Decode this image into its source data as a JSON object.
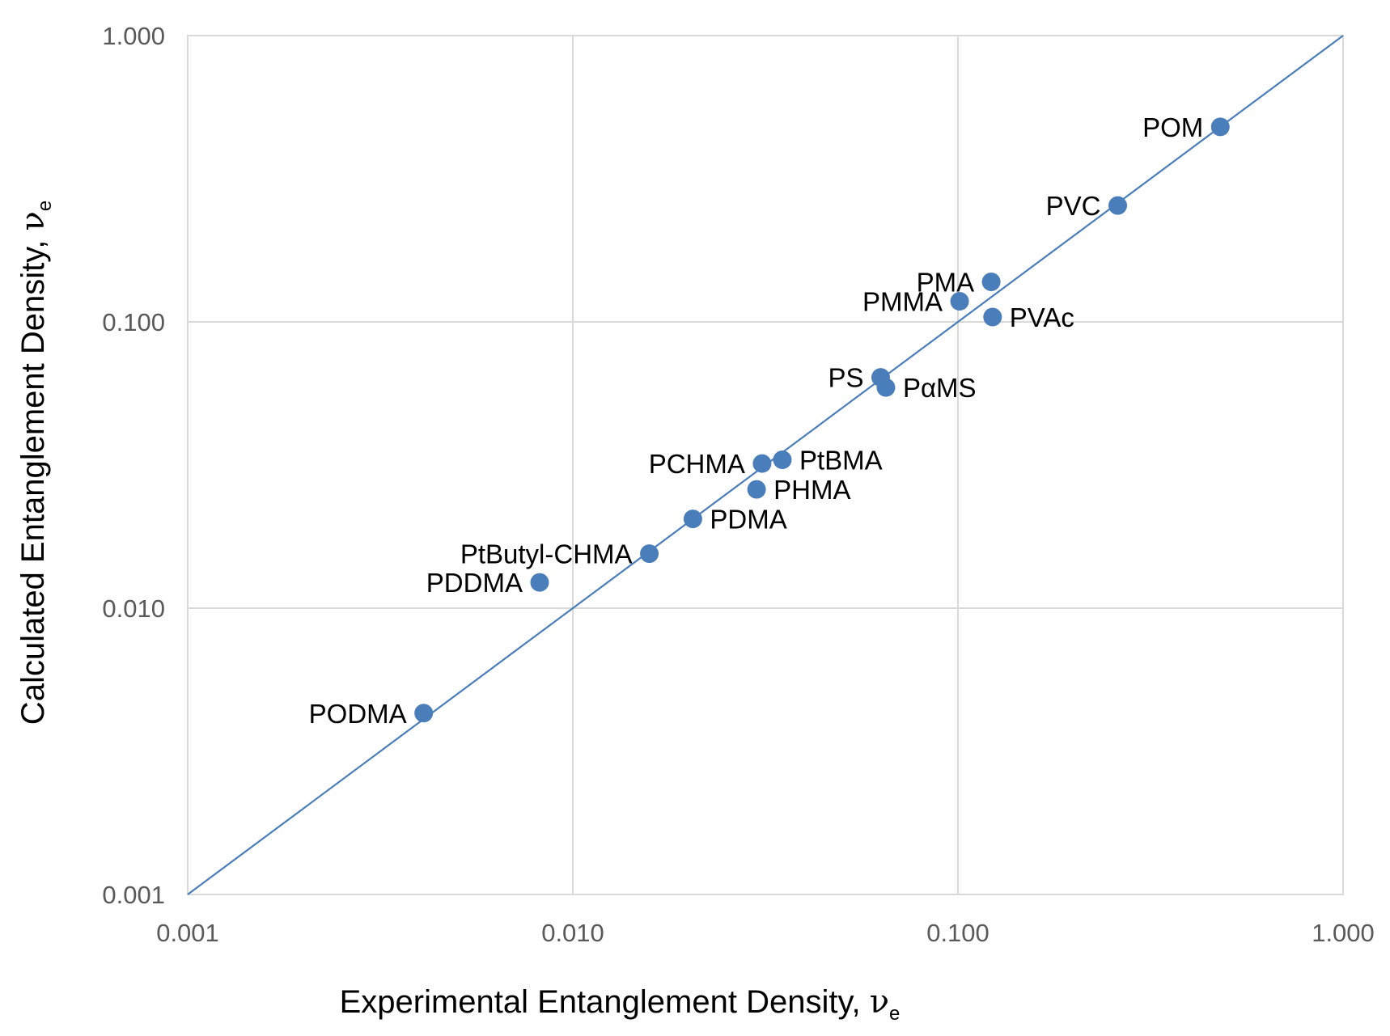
{
  "chart_data": {
    "type": "scatter",
    "xlabel": "Experimental Entanglement Density, ",
    "xlabel_symbol": "ν",
    "xlabel_subscript": "e",
    "ylabel": "Calculated Entanglement Density, ",
    "ylabel_symbol": "ν",
    "ylabel_subscript": "e",
    "x_scale": "log",
    "y_scale": "log",
    "xlim": [
      0.001,
      1.0
    ],
    "ylim": [
      0.001,
      1.0
    ],
    "x_ticks": [
      0.001,
      0.01,
      0.1,
      1.0
    ],
    "x_tick_labels": [
      "0.001",
      "0.010",
      "0.100",
      "1.000"
    ],
    "y_ticks": [
      0.001,
      0.01,
      0.1,
      1.0
    ],
    "y_tick_labels": [
      "0.001",
      "0.010",
      "0.100",
      "1.000"
    ],
    "grid": true,
    "legend": "none",
    "marker_color": "#4a7ebb",
    "line_color": "#4a7ebb",
    "grid_color": "#d9d9d9",
    "reference_line": {
      "x": [
        0.001,
        1.0
      ],
      "y": [
        0.001,
        1.0
      ]
    },
    "points": [
      {
        "label": "POM",
        "x": 0.48,
        "y": 0.48,
        "anchor": "end"
      },
      {
        "label": "PVC",
        "x": 0.26,
        "y": 0.255,
        "anchor": "end"
      },
      {
        "label": "PMA",
        "x": 0.122,
        "y": 0.138,
        "anchor": "end"
      },
      {
        "label": "PMMA",
        "x": 0.101,
        "y": 0.118,
        "anchor": "end"
      },
      {
        "label": "PVAc",
        "x": 0.123,
        "y": 0.104,
        "anchor": "start"
      },
      {
        "label": "PS",
        "x": 0.063,
        "y": 0.064,
        "anchor": "end"
      },
      {
        "label": "PαMS",
        "x": 0.065,
        "y": 0.059,
        "anchor": "start"
      },
      {
        "label": "PtBMA",
        "x": 0.035,
        "y": 0.033,
        "anchor": "start"
      },
      {
        "label": "PCHMA",
        "x": 0.031,
        "y": 0.032,
        "anchor": "end"
      },
      {
        "label": "PHMA",
        "x": 0.03,
        "y": 0.026,
        "anchor": "start"
      },
      {
        "label": "PDMA",
        "x": 0.0205,
        "y": 0.0205,
        "anchor": "start"
      },
      {
        "label": "PtButyl-CHMA",
        "x": 0.0158,
        "y": 0.0155,
        "anchor": "end"
      },
      {
        "label": "PDDMA",
        "x": 0.0082,
        "y": 0.0123,
        "anchor": "end"
      },
      {
        "label": "PODMA",
        "x": 0.0041,
        "y": 0.0043,
        "anchor": "end"
      }
    ]
  }
}
